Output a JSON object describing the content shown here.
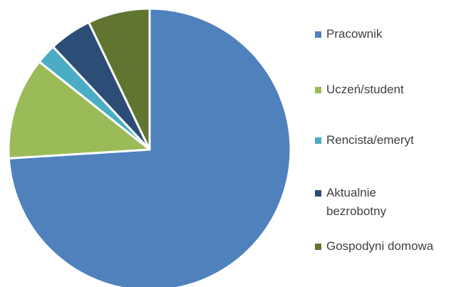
{
  "chart_data": {
    "type": "pie",
    "categories": [
      "Pracownik",
      "Uczeń/student",
      "Rencista/emeryt",
      "Aktualnie bezrobotny",
      "Gospodyni domowa"
    ],
    "values": [
      74,
      11.7,
      2.3,
      4.9,
      7.1
    ],
    "colors": [
      "#4f81bd",
      "#9bbb59",
      "#4bacc6",
      "#2c4d75",
      "#5f7530"
    ],
    "legend": "right"
  }
}
